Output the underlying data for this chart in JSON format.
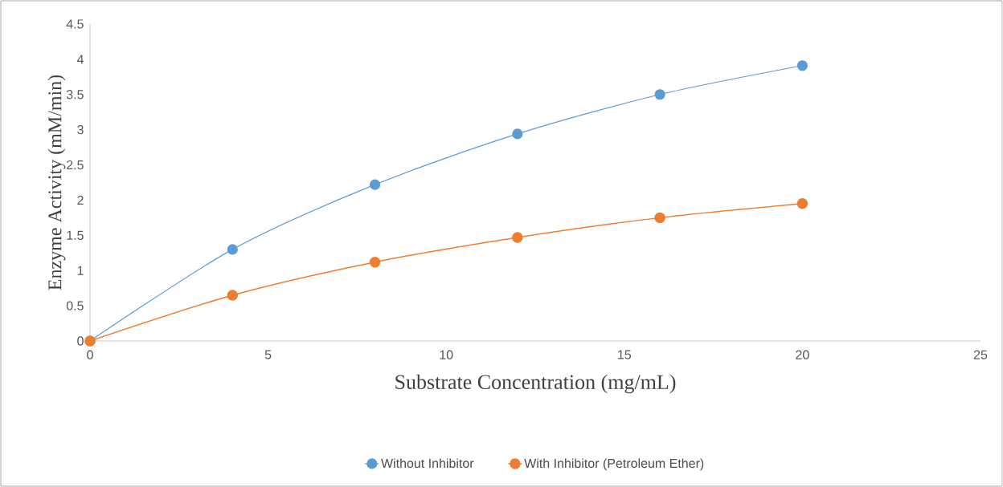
{
  "chart_data": {
    "type": "line",
    "xlabel": "Substrate Concentration (mg/mL)",
    "ylabel": "Enzyme Activity (mM/min)",
    "x": [
      0,
      4,
      8,
      12,
      16,
      20
    ],
    "series": [
      {
        "name": "Without Inhibitor",
        "color": "#5b9bd5",
        "values": [
          0,
          1.3,
          2.22,
          2.94,
          3.5,
          3.91
        ]
      },
      {
        "name": "With Inhibitor (Petroleum Ether)",
        "color": "#ed7d31",
        "values": [
          0,
          0.65,
          1.12,
          1.47,
          1.75,
          1.95
        ]
      }
    ],
    "xlim": [
      0,
      25
    ],
    "xticks": [
      0,
      5,
      10,
      15,
      20,
      25
    ],
    "ylim": [
      0,
      4.5
    ],
    "yticks": [
      0,
      0.5,
      1,
      1.5,
      2,
      2.5,
      3,
      3.5,
      4,
      4.5
    ],
    "grid": false,
    "legend": "bottom",
    "marker": "circle",
    "line_style": "solid"
  }
}
